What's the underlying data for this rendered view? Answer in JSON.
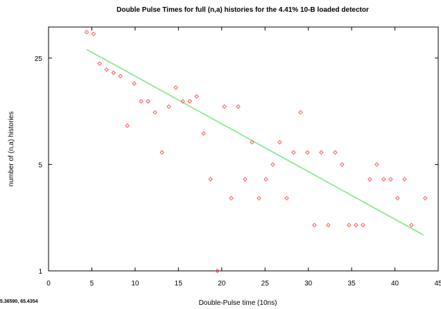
{
  "chart_data": {
    "type": "scatter",
    "title": "Double Pulse Times for full (n,a) histories for the 4.41% 10-B loaded detector",
    "xlabel": "Double-Pulse time (10ns)",
    "ylabel": "number of (n,a) histories",
    "xlim": [
      0,
      45
    ],
    "ylim": [
      1,
      40
    ],
    "y_scale": "log",
    "x_ticks": [
      0,
      5,
      10,
      15,
      20,
      25,
      30,
      35,
      40,
      45
    ],
    "x_tick_labels": [
      "0",
      "5",
      "10",
      "15",
      "20",
      "25",
      "30",
      "35",
      "40",
      "45"
    ],
    "y_ticks": [
      1,
      5,
      25
    ],
    "y_tick_labels": [
      "1",
      "5",
      "25"
    ],
    "grid": false,
    "legend": "none",
    "series": [
      {
        "kind": "points",
        "color": "#ff4444",
        "marker": "diamond-open",
        "x": [
          4.4,
          5.2,
          5.9,
          6.7,
          7.5,
          8.3,
          9.1,
          9.9,
          10.7,
          11.5,
          12.3,
          13.1,
          13.9,
          14.7,
          15.5,
          16.3,
          17.1,
          17.9,
          18.7,
          19.5,
          20.3,
          21.1,
          21.9,
          22.7,
          23.5,
          24.3,
          25.1,
          25.9,
          26.7,
          27.5,
          28.3,
          29.1,
          29.9,
          30.7,
          31.5,
          32.3,
          33.1,
          33.9,
          34.7,
          35.5,
          36.3,
          37.1,
          37.9,
          38.7,
          39.5,
          40.3,
          41.1,
          41.9,
          43.5
        ],
        "y": [
          37,
          36,
          23,
          21,
          20,
          19,
          9,
          17,
          13,
          13,
          11,
          6,
          12,
          16,
          13,
          13,
          14,
          8,
          4,
          1,
          12,
          3,
          12,
          4,
          7,
          3,
          4,
          5,
          7,
          3,
          6,
          11,
          6,
          2,
          6,
          2,
          6,
          5,
          2,
          2,
          2,
          4,
          5,
          4,
          4,
          3,
          4,
          2,
          3
        ]
      },
      {
        "kind": "fit-line",
        "color": "#80e880",
        "x": [
          4.4,
          43.3
        ],
        "y": [
          28.5,
          1.72
        ]
      }
    ]
  },
  "status": {
    "cursor_readout": "5.36590, 65.4354"
  }
}
